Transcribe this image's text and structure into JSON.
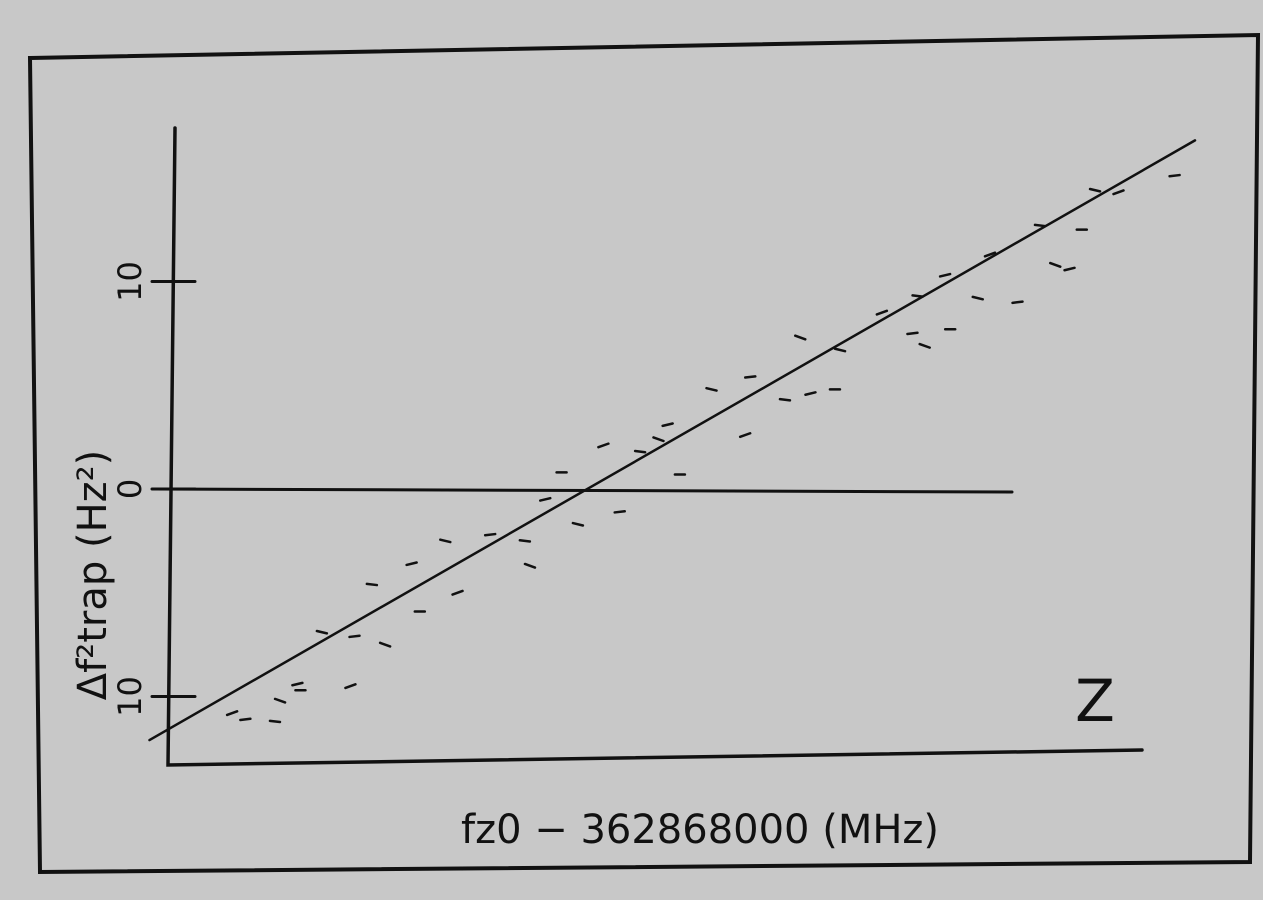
{
  "chart_data": {
    "type": "scatter",
    "ylabel": "Δf²trap (Hz²)",
    "xlabel": "fz0 − 362868000 (MHz)",
    "annotation": "Z",
    "xlim": [
      0,
      100
    ],
    "ylim": [
      -13.3,
      17.3
    ],
    "yticks": [
      {
        "value": 10,
        "label": "10"
      },
      0,
      {
        "value": -10,
        "label": "10"
      }
    ],
    "zero_line": true,
    "grid": false,
    "color": "#111111",
    "x": [
      5.6,
      6.9,
      9.8,
      10.3,
      12.0,
      12.3,
      14.4,
      17.2,
      17.6,
      19.3,
      20.6,
      23.2,
      24.0,
      26.5,
      27.7,
      30.9,
      34.3,
      34.8,
      36.3,
      37.9,
      39.5,
      42.0,
      43.6,
      45.6,
      47.4,
      48.3,
      49.5,
      52.6,
      55.9,
      56.4,
      59.8,
      61.3,
      62.3,
      64.7,
      65.2,
      69.3,
      72.3,
      72.8,
      73.5,
      75.5,
      76.0,
      78.7,
      79.9,
      82.6,
      84.8,
      86.3,
      87.7,
      88.9,
      90.2,
      92.5,
      98.0
    ],
    "values": [
      -10.8,
      -11.1,
      -11.2,
      -10.2,
      -9.4,
      -9.7,
      -6.9,
      -9.5,
      -7.1,
      -4.6,
      -7.5,
      -3.6,
      -5.9,
      -2.5,
      -5.0,
      -2.2,
      -2.5,
      -3.7,
      -0.5,
      0.8,
      -1.7,
      2.1,
      -1.1,
      1.8,
      2.4,
      3.1,
      0.7,
      4.8,
      2.6,
      5.4,
      4.3,
      7.3,
      4.6,
      4.8,
      6.7,
      8.5,
      7.5,
      9.3,
      6.9,
      10.3,
      7.7,
      9.2,
      11.3,
      9.0,
      12.7,
      10.8,
      10.6,
      12.5,
      14.4,
      14.3,
      15.1
    ],
    "fit_line": {
      "x": [
        -2.5,
        100
      ],
      "y": [
        -12.1,
        16.8
      ]
    }
  }
}
